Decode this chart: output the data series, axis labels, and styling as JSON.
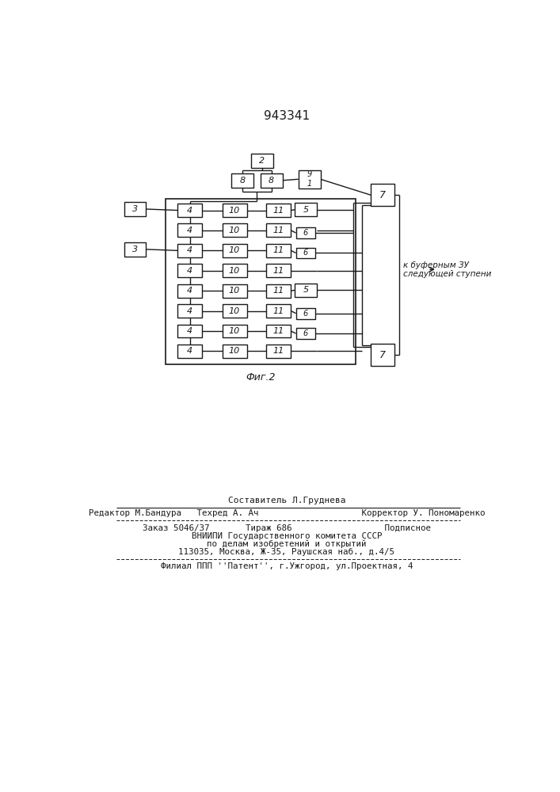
{
  "title": "943341",
  "fig_label": "Фиг.2",
  "bg_color": "#ffffff",
  "line_color": "#1a1a1a",
  "box_color": "#ffffff",
  "footer_lines": [
    "Составитель Л.Груднева",
    "Редактор М.Бандура   Техред А. Ач                    Корректор У. Пономаренко",
    "Заказ 5046/37       Тираж 686                  Подписное",
    "ВНИИПИ Государственного комитета СССР",
    "по делам изобретений и открытий",
    "113035, Москва, Ж-35, Раушская наб., д.4/5",
    "Филиал ППП ''Патент'', г.Ужгород, ул.Проектная, 4"
  ],
  "annot_line1": "к буферным ЗУ",
  "annot_line2": "следующей ступени"
}
